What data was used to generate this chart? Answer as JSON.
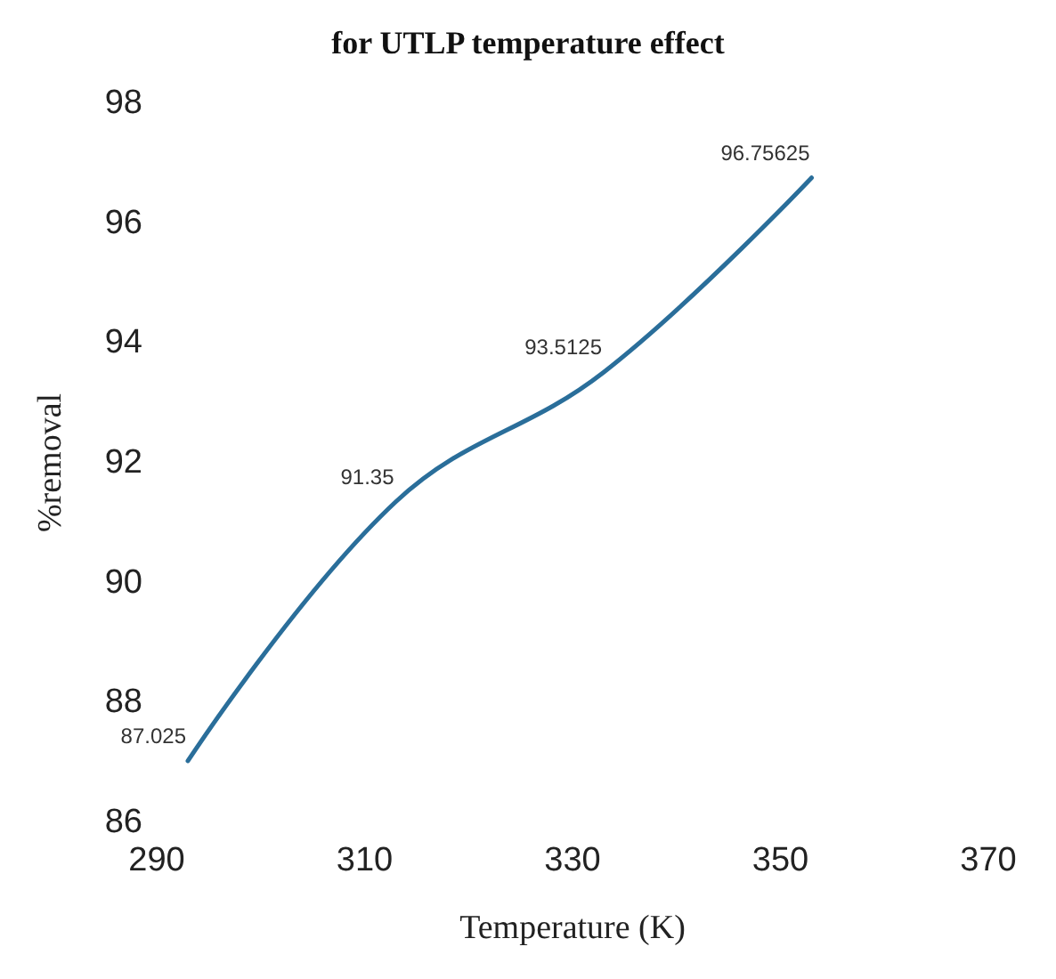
{
  "chart_data": {
    "type": "line",
    "title": "for UTLP temperature effect",
    "xlabel": "Temperature (K)",
    "ylabel": "%removal",
    "x": [
      293,
      313,
      333,
      353
    ],
    "series": [
      {
        "color": "#2a6e9a",
        "values": [
          87.025,
          91.35,
          93.5125,
          96.75625
        ]
      }
    ],
    "xlim": [
      290,
      370
    ],
    "xticks": [
      290,
      310,
      330,
      350,
      370
    ],
    "ylim": [
      86,
      98
    ],
    "yticks": [
      86,
      88,
      90,
      92,
      94,
      96,
      98
    ],
    "data_labels": true,
    "grid": false,
    "marker": "none",
    "line_style": "solid"
  }
}
